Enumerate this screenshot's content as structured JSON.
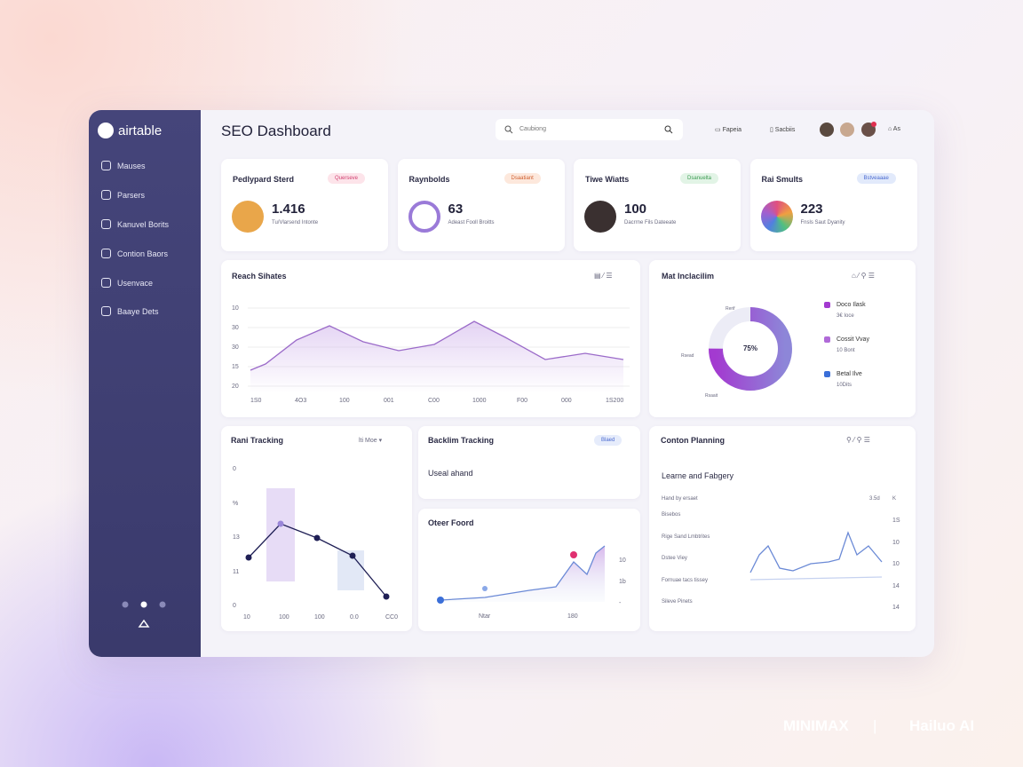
{
  "sidebar": {
    "brand": "airtable",
    "nav": [
      "Mauses",
      "Parsers",
      "Kanuvel Borits",
      "Contion Baors",
      "Usenvace",
      "Baaye Dets"
    ]
  },
  "header": {
    "title": "SEO Dashboard",
    "search": "Caubiong",
    "actions": [
      "Fapeia",
      "Sacbiis"
    ],
    "user": "As"
  },
  "stats": [
    {
      "title": "Pedlypard Sterd",
      "badge": "Querseve",
      "value": 1.416,
      "sub": "Tu/Vlarsend Intonte"
    },
    {
      "title": "Raynbolds",
      "badge": "Dsaatiant",
      "value": 63,
      "sub": "Adeast Fooll Broitts"
    },
    {
      "title": "Tiwe Wiatts",
      "badge": "Dsanuelta",
      "value": 100,
      "sub": "Dacrrne Fils Dateeate"
    },
    {
      "title": "Rai Smults",
      "badge": "Bstveaaae",
      "value": 223,
      "sub": "Fnsls Saut Dyanity"
    }
  ],
  "reach": {
    "title": "Reach Sihates",
    "y_labels": [
      "10",
      "30",
      "30",
      "15",
      "20"
    ],
    "x_labels": [
      "1S0",
      "4O3",
      "100",
      "001",
      "C00",
      "1000",
      "F00",
      "000",
      "1S200"
    ]
  },
  "donut": {
    "title": "Mat Inclacilim",
    "center": "75%",
    "side_labels": [
      "Rerif",
      "Rsead",
      "Rsaait"
    ],
    "legend": [
      {
        "name": "Doco Ilask",
        "sub": "3€ Ioce"
      },
      {
        "name": "Cossit Vvay",
        "sub": "10 Bont"
      },
      {
        "name": "Betal Ilve",
        "sub": "10Dits"
      }
    ]
  },
  "rank": {
    "title": "Rani Tracking",
    "dropdown": "lti Moe",
    "y_labels": [
      "0",
      "%",
      "13",
      "11",
      "0"
    ],
    "x_labels": [
      "10",
      "100",
      "100",
      "0.0",
      "CC0"
    ]
  },
  "backlink": {
    "title": "Backlim Tracking",
    "badge": "Blaed",
    "subtitle": "Useal ahand"
  },
  "other": {
    "title": "Oteer Foord",
    "y_labels": [
      "10",
      "1b",
      "-"
    ],
    "x_labels": [
      "Ntar",
      "180"
    ]
  },
  "content": {
    "title": "Conton Planning",
    "subtitle": "Learne and Fabgery",
    "head": "Hand by ersaet",
    "head_value": "3.5d",
    "head_unit": "K",
    "items": [
      "Bisebos",
      "Rige Sand Lmbtrites",
      "Dstee Viey",
      "Fornuae tacs tissey",
      "Sileve Pinets"
    ],
    "y_labels": [
      "1S",
      "10",
      "10",
      "14",
      "14"
    ]
  },
  "watermark": {
    "left": "MINIMAX",
    "right": "Hailuo AI"
  }
}
